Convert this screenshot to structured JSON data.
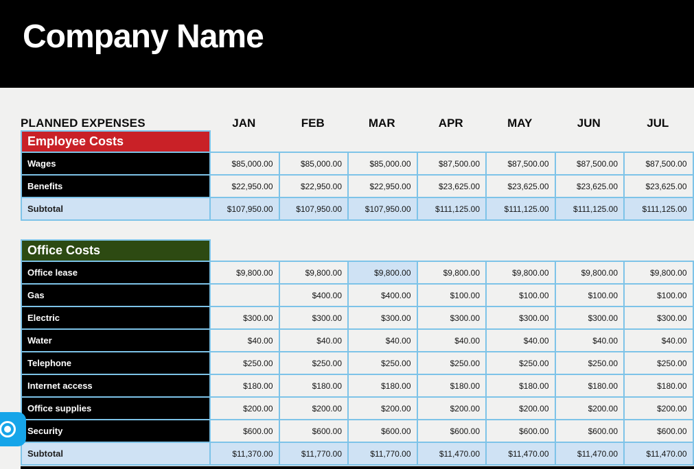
{
  "header": {
    "company_name": "Company Name"
  },
  "table": {
    "title": "PLANNED EXPENSES",
    "months": [
      "JAN",
      "FEB",
      "MAR",
      "APR",
      "MAY",
      "JUN",
      "JUL"
    ],
    "sections": [
      {
        "name": "Employee Costs",
        "color": "#c92127",
        "rows": [
          {
            "label": "Wages",
            "subtotal": false,
            "values": [
              "$85,000.00",
              "$85,000.00",
              "$85,000.00",
              "$87,500.00",
              "$87,500.00",
              "$87,500.00",
              "$87,500.00"
            ]
          },
          {
            "label": "Benefits",
            "subtotal": false,
            "values": [
              "$22,950.00",
              "$22,950.00",
              "$22,950.00",
              "$23,625.00",
              "$23,625.00",
              "$23,625.00",
              "$23,625.00"
            ]
          },
          {
            "label": "Subtotal",
            "subtotal": true,
            "values": [
              "$107,950.00",
              "$107,950.00",
              "$107,950.00",
              "$111,125.00",
              "$111,125.00",
              "$111,125.00",
              "$111,125.00"
            ]
          }
        ]
      },
      {
        "name": "Office Costs",
        "color": "#2d4a12",
        "rows": [
          {
            "label": "Office lease",
            "subtotal": false,
            "values": [
              "$9,800.00",
              "$9,800.00",
              "$9,800.00",
              "$9,800.00",
              "$9,800.00",
              "$9,800.00",
              "$9,800.00"
            ]
          },
          {
            "label": "Gas",
            "subtotal": false,
            "values": [
              "",
              "$400.00",
              "$400.00",
              "$100.00",
              "$100.00",
              "$100.00",
              "$100.00"
            ]
          },
          {
            "label": "Electric",
            "subtotal": false,
            "values": [
              "$300.00",
              "$300.00",
              "$300.00",
              "$300.00",
              "$300.00",
              "$300.00",
              "$300.00"
            ]
          },
          {
            "label": "Water",
            "subtotal": false,
            "values": [
              "$40.00",
              "$40.00",
              "$40.00",
              "$40.00",
              "$40.00",
              "$40.00",
              "$40.00"
            ]
          },
          {
            "label": "Telephone",
            "subtotal": false,
            "values": [
              "$250.00",
              "$250.00",
              "$250.00",
              "$250.00",
              "$250.00",
              "$250.00",
              "$250.00"
            ]
          },
          {
            "label": "Internet access",
            "subtotal": false,
            "values": [
              "$180.00",
              "$180.00",
              "$180.00",
              "$180.00",
              "$180.00",
              "$180.00",
              "$180.00"
            ]
          },
          {
            "label": "Office supplies",
            "subtotal": false,
            "values": [
              "$200.00",
              "$200.00",
              "$200.00",
              "$200.00",
              "$200.00",
              "$200.00",
              "$200.00"
            ]
          },
          {
            "label": "Security",
            "subtotal": false,
            "values": [
              "$600.00",
              "$600.00",
              "$600.00",
              "$600.00",
              "$600.00",
              "$600.00",
              "$600.00"
            ]
          },
          {
            "label": "Subtotal",
            "subtotal": true,
            "values": [
              "$11,370.00",
              "$11,770.00",
              "$11,770.00",
              "$11,470.00",
              "$11,470.00",
              "$11,470.00",
              "$11,470.00"
            ]
          }
        ]
      }
    ],
    "selected_cell": {
      "section": 1,
      "row": 0,
      "col": 2
    }
  },
  "floating_button": {
    "icon": "record-dot-icon"
  },
  "colors": {
    "page_background": "#f1f1f0",
    "banner_black": "#000000",
    "employee_costs_red": "#c92127",
    "office_costs_green": "#2d4a12",
    "grid_border_blue": "#7dc3e8",
    "subtotal_fill_blue": "#cfe2f4",
    "button_blue": "#16a5e9"
  }
}
